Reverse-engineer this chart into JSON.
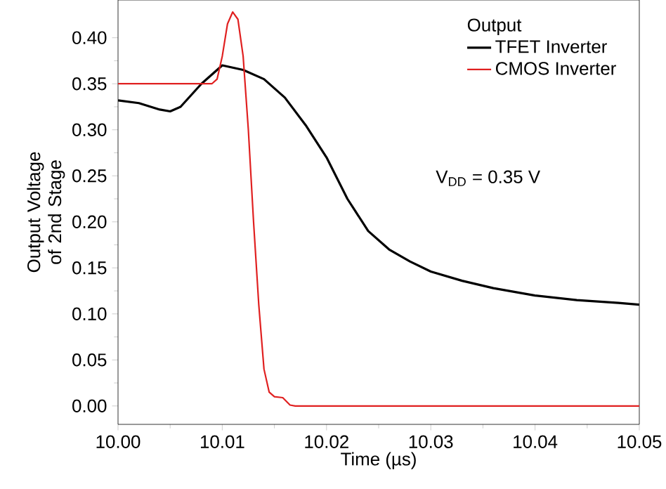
{
  "chart_data": {
    "type": "line",
    "xlabel": "Time (µs)",
    "ylabel": "Output Voltage of 2nd Stage",
    "legend_title": "Output",
    "annotations": [
      "V$_{DD}$ = 0.35 V"
    ],
    "xlim": [
      10.0,
      10.05
    ],
    "ylim": [
      -0.02,
      0.441
    ],
    "xticks": [
      {
        "value": 10.0,
        "label": "10.00"
      },
      {
        "value": 10.01,
        "label": "10.01"
      },
      {
        "value": 10.02,
        "label": "10.02"
      },
      {
        "value": 10.03,
        "label": "10.03"
      },
      {
        "value": 10.04,
        "label": "10.04"
      },
      {
        "value": 10.05,
        "label": "10.05"
      }
    ],
    "yticks": [
      {
        "value": 0.0,
        "label": "0.00"
      },
      {
        "value": 0.05,
        "label": "0.05"
      },
      {
        "value": 0.1,
        "label": "0.10"
      },
      {
        "value": 0.15,
        "label": "0.15"
      },
      {
        "value": 0.2,
        "label": "0.20"
      },
      {
        "value": 0.25,
        "label": "0.25"
      },
      {
        "value": 0.3,
        "label": "0.30"
      },
      {
        "value": 0.35,
        "label": "0.35"
      },
      {
        "value": 0.4,
        "label": "0.40"
      }
    ],
    "legend": "top right",
    "grid": false,
    "marker": "none",
    "line_style": "solid",
    "series": [
      {
        "name": "TFET Inverter",
        "color": "#000000",
        "x": [
          10.0,
          10.002,
          10.004,
          10.005,
          10.006,
          10.008,
          10.01,
          10.012,
          10.014,
          10.016,
          10.018,
          10.02,
          10.022,
          10.024,
          10.026,
          10.028,
          10.03,
          10.033,
          10.036,
          10.04,
          10.044,
          10.048,
          10.05
        ],
        "values": [
          0.332,
          0.329,
          0.322,
          0.32,
          0.325,
          0.35,
          0.37,
          0.365,
          0.355,
          0.335,
          0.305,
          0.27,
          0.225,
          0.19,
          0.17,
          0.157,
          0.146,
          0.136,
          0.128,
          0.12,
          0.115,
          0.112,
          0.11
        ]
      },
      {
        "name": "CMOS Inverter",
        "color": "#e02020",
        "x": [
          10.0,
          10.009,
          10.0095,
          10.01,
          10.0105,
          10.011,
          10.0115,
          10.012,
          10.0125,
          10.013,
          10.0135,
          10.014,
          10.0145,
          10.015,
          10.0158,
          10.0165,
          10.017,
          10.05
        ],
        "values": [
          0.35,
          0.35,
          0.355,
          0.38,
          0.415,
          0.428,
          0.42,
          0.38,
          0.3,
          0.2,
          0.11,
          0.04,
          0.015,
          0.01,
          0.009,
          0.001,
          0.0,
          0.0
        ]
      }
    ]
  }
}
